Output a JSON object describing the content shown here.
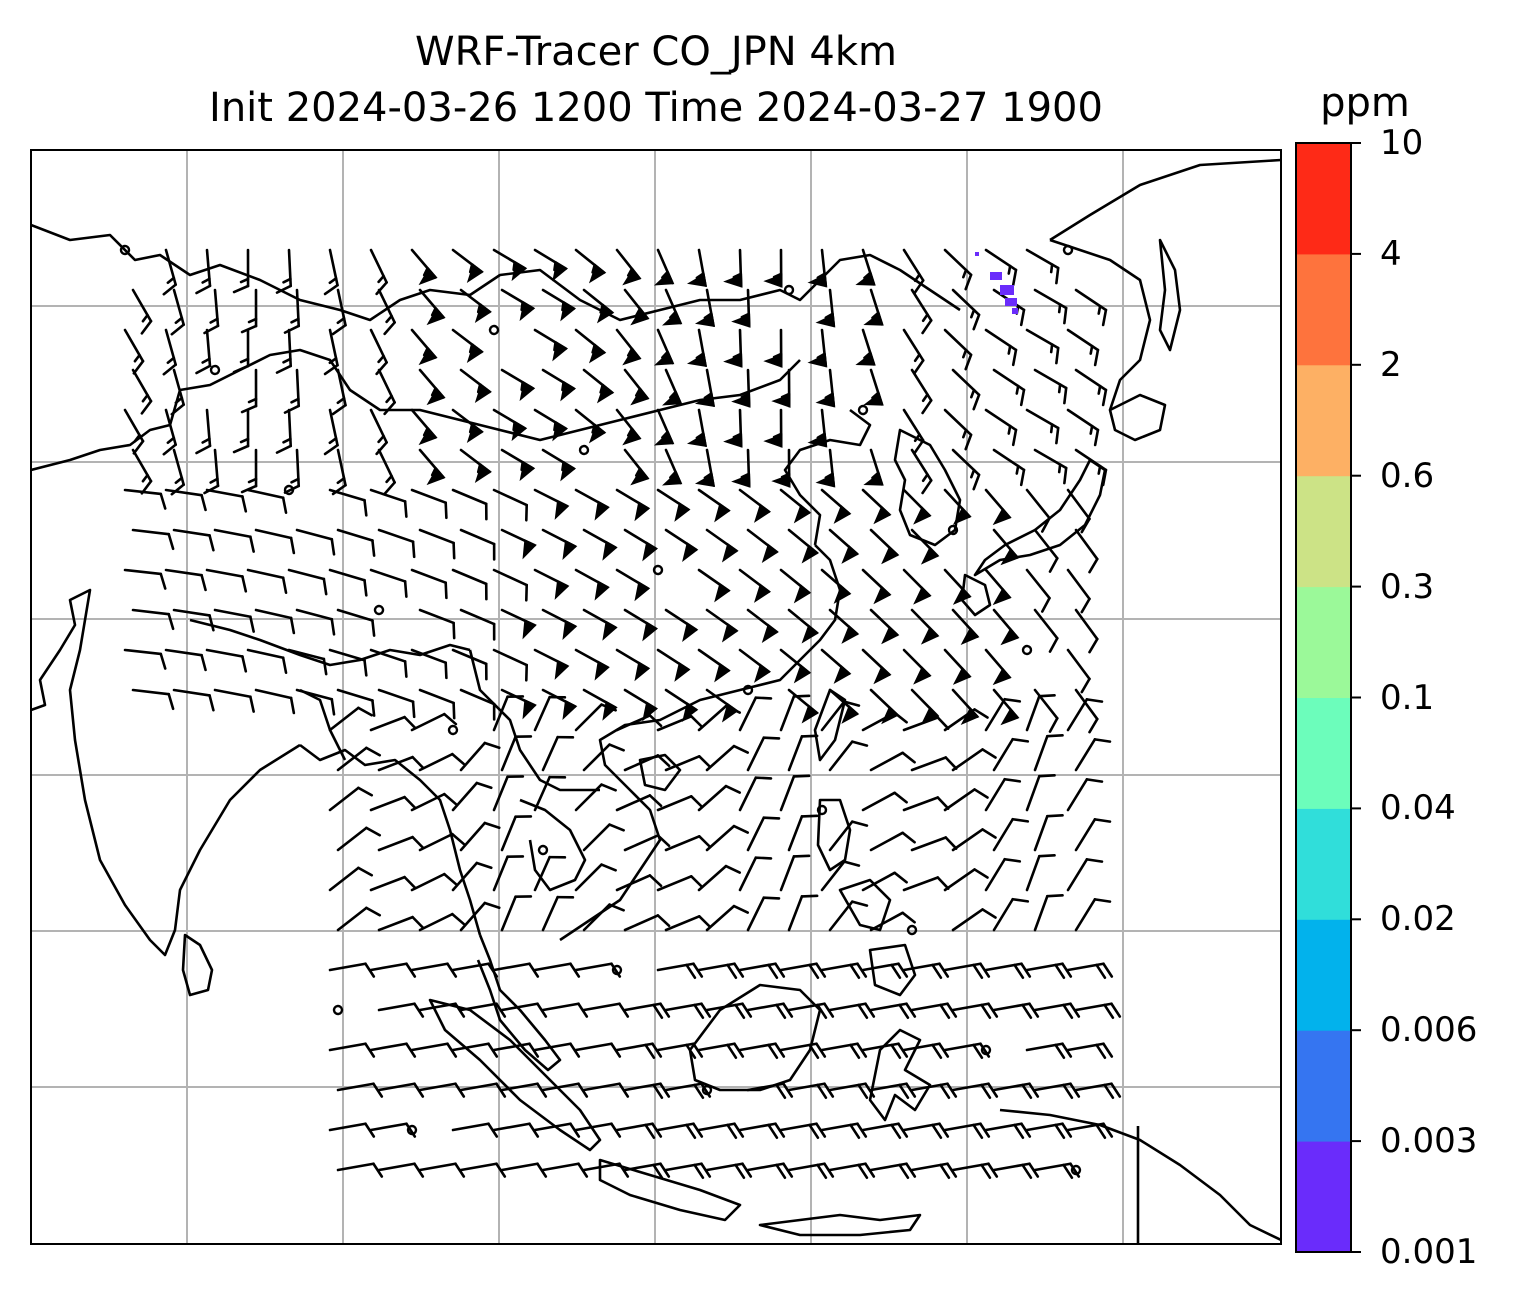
{
  "title": {
    "line1": "WRF-Tracer CO_JPN 4km",
    "line2": "Init 2024-03-26 1200 Time 2024-03-27 1900"
  },
  "colorbar": {
    "unit": "ppm",
    "levels": [
      "0.001",
      "0.003",
      "0.006",
      "0.02",
      "0.04",
      "0.1",
      "0.3",
      "0.6",
      "2",
      "4",
      "10"
    ],
    "colors": [
      "#6a2cfb",
      "#3575f1",
      "#02b2ec",
      "#30deda",
      "#6cfdbb",
      "#9bf999",
      "#cce386",
      "#fdb064",
      "#fe733d",
      "#fe2a17"
    ]
  },
  "map": {
    "land_outline_color": "#000000",
    "gridline_color": "#b3b3b3",
    "field": "CO tracer concentration",
    "tracer_plume": {
      "approx_lon": 141,
      "approx_lat": 42,
      "level_color": "#6a2cfb"
    },
    "wind_barbs": "wind barbs overlaid across the domain"
  }
}
